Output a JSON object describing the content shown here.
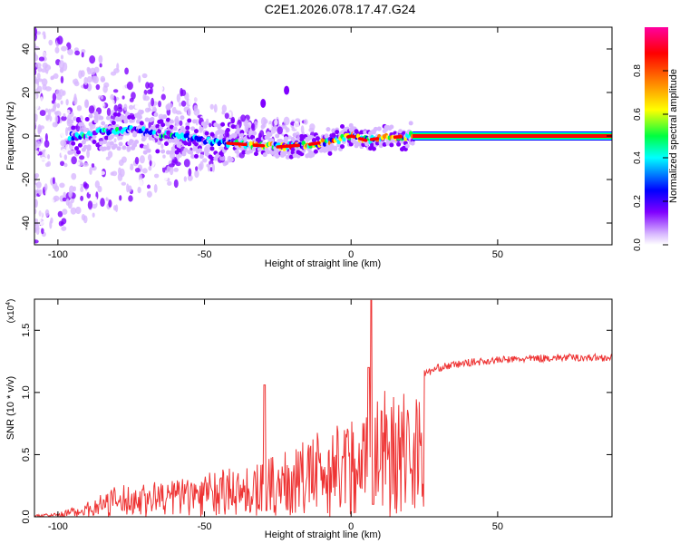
{
  "title": "C2E1.2026.078.17.47.G24",
  "chart_data": [
    {
      "type": "heatmap",
      "xlabel": "Height of straight line (km)",
      "ylabel": "Frequency (Hz)",
      "xlim": [
        -108,
        89
      ],
      "ylim": [
        -50,
        50
      ],
      "xticks": [
        -100,
        -50,
        0,
        50
      ],
      "xtick_labels": [
        "-100",
        "-50",
        "0",
        "50"
      ],
      "yticks": [
        -40,
        -20,
        0,
        20,
        40
      ],
      "ytick_labels": [
        "-40",
        "-20",
        "0",
        "20",
        "40"
      ],
      "colorbar": {
        "label": "Normalized spectral amplitude",
        "range": [
          0,
          1
        ],
        "ticks": [
          0,
          0.2,
          0.4,
          0.6,
          0.8
        ],
        "tick_labels": [
          "0.0",
          "0.2",
          "0.4",
          "0.6",
          "0.8"
        ],
        "colormap": [
          "#ffffff",
          "#d8b8ff",
          "#8000ff",
          "#0000ff",
          "#00ffff",
          "#00ff40",
          "#ffff00",
          "#ff8000",
          "#ff0000",
          "#ff00a0"
        ]
      },
      "ridge": {
        "description_points": [
          {
            "x": -95,
            "freq": 0
          },
          {
            "x": -85,
            "freq": 2
          },
          {
            "x": -75,
            "freq": 3
          },
          {
            "x": -65,
            "freq": 1
          },
          {
            "x": -55,
            "freq": -1
          },
          {
            "x": -45,
            "freq": -3
          },
          {
            "x": -35,
            "freq": -4
          },
          {
            "x": -25,
            "freq": -5
          },
          {
            "x": -15,
            "freq": -4
          },
          {
            "x": -5,
            "freq": -2
          },
          {
            "x": 0,
            "freq": 0
          },
          {
            "x": 5,
            "freq": -2
          },
          {
            "x": 10,
            "freq": -1
          },
          {
            "x": 20,
            "freq": 0
          },
          {
            "x": 89,
            "freq": 0
          }
        ],
        "outliers": [
          {
            "x": -30,
            "freq": 15
          },
          {
            "x": -22,
            "freq": 21
          }
        ]
      }
    },
    {
      "type": "line",
      "xlabel": "Height of straight line (km)",
      "ylabel": "SNR (10 * v/v)",
      "yscale_label": "(x10",
      "yscale_exponent": "4",
      "xlim": [
        -108,
        89
      ],
      "ylim": [
        0,
        1.75
      ],
      "xticks": [
        -100,
        -50,
        0,
        50
      ],
      "xtick_labels": [
        "-100",
        "-50",
        "0",
        "50"
      ],
      "yticks": [
        0,
        0.5,
        1.0,
        1.5
      ],
      "ytick_labels": [
        "0.0",
        "0.5",
        "1.0",
        "1.5"
      ],
      "series": [
        {
          "name": "SNR",
          "color": "#ee3333",
          "envelope": [
            {
              "x": -108,
              "y": 0.02
            },
            {
              "x": -100,
              "y": 0.03
            },
            {
              "x": -90,
              "y": 0.12
            },
            {
              "x": -80,
              "y": 0.25
            },
            {
              "x": -70,
              "y": 0.28
            },
            {
              "x": -60,
              "y": 0.32
            },
            {
              "x": -50,
              "y": 0.37
            },
            {
              "x": -40,
              "y": 0.4
            },
            {
              "x": -30,
              "y": 0.45
            },
            {
              "x": -20,
              "y": 0.55
            },
            {
              "x": -10,
              "y": 0.7
            },
            {
              "x": 0,
              "y": 0.82
            },
            {
              "x": 10,
              "y": 1.02
            },
            {
              "x": 20,
              "y": 1.1
            },
            {
              "x": 30,
              "y": 1.2
            },
            {
              "x": 40,
              "y": 1.24
            },
            {
              "x": 50,
              "y": 1.26
            },
            {
              "x": 60,
              "y": 1.27
            },
            {
              "x": 70,
              "y": 1.28
            },
            {
              "x": 89,
              "y": 1.28
            }
          ],
          "spikes": [
            {
              "x": -29.5,
              "y": 1.06
            },
            {
              "x": -28.8,
              "y": 0.05
            },
            {
              "x": 7,
              "y": 1.74
            },
            {
              "x": 7.5,
              "y": 0.1
            },
            {
              "x": 6,
              "y": 1.2
            }
          ]
        }
      ]
    }
  ]
}
